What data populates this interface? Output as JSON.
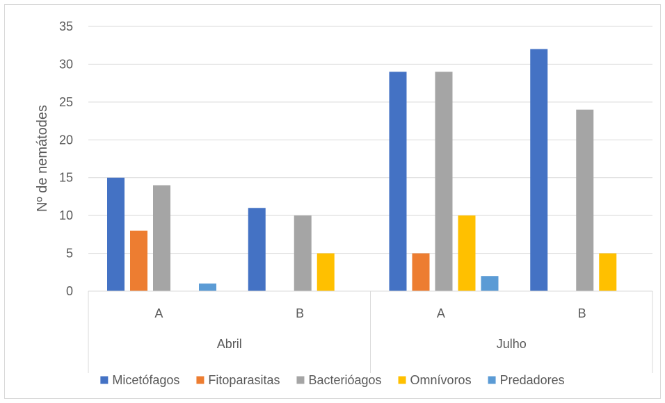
{
  "chart_data": {
    "type": "bar",
    "title": "",
    "ylabel": "Nº de nemátodes",
    "xlabel": "",
    "ylim": [
      0,
      35
    ],
    "yticks": [
      0,
      5,
      10,
      15,
      20,
      25,
      30,
      35
    ],
    "grid": true,
    "legend_position": "bottom",
    "groups": [
      {
        "label": "Abril",
        "categories": [
          "A",
          "B"
        ]
      },
      {
        "label": "Julho",
        "categories": [
          "A",
          "B"
        ]
      }
    ],
    "series": [
      {
        "name": "Micetófagos",
        "color": "#4472C4",
        "values": [
          15,
          11,
          29,
          32
        ]
      },
      {
        "name": "Fitoparasitas",
        "color": "#ED7D31",
        "values": [
          8,
          0,
          5,
          0
        ]
      },
      {
        "name": "Bacterióagos",
        "color": "#A5A5A5",
        "values": [
          14,
          10,
          29,
          24
        ]
      },
      {
        "name": "Omnívoros",
        "color": "#FFC000",
        "values": [
          0,
          5,
          10,
          5
        ]
      },
      {
        "name": "Predadores",
        "color": "#5B9BD5",
        "values": [
          1,
          0,
          2,
          0
        ]
      }
    ]
  }
}
